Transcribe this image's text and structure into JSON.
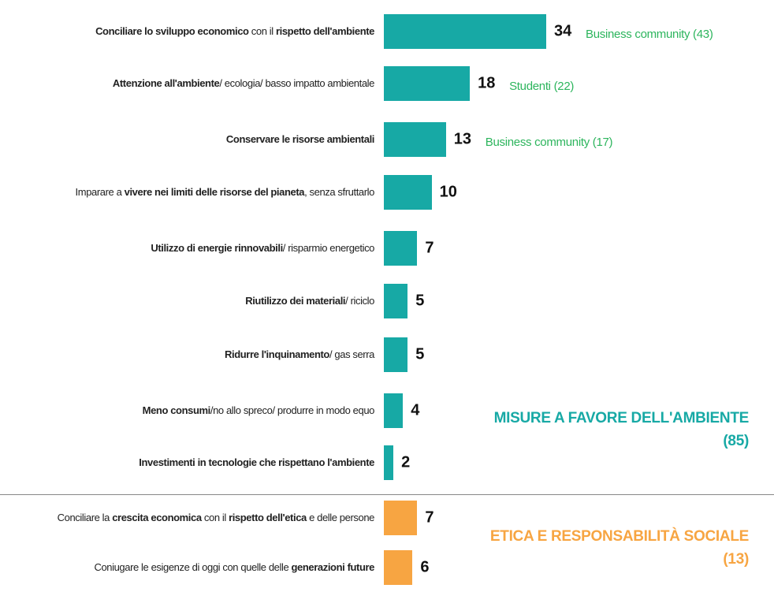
{
  "chart_data": {
    "type": "bar",
    "groups": [
      {
        "name": "MISURE A FAVORE DELL'AMBIENTE (85)",
        "color": "#17a9a5",
        "categories": [
          [
            {
              "text": "Conciliare lo sviluppo economico",
              "bold": true
            },
            {
              "text": " con il ",
              "bold": false
            },
            {
              "text": "rispetto dell'ambiente",
              "bold": true
            }
          ],
          [
            {
              "text": "Attenzione all'ambiente",
              "bold": true
            },
            {
              "text": "/ ecologia/ basso impatto ambientale",
              "bold": false
            }
          ],
          [
            {
              "text": "Conservare le risorse ambientali",
              "bold": true
            }
          ],
          [
            {
              "text": "Imparare a ",
              "bold": false
            },
            {
              "text": "vivere nei limiti delle risorse del pianeta",
              "bold": true
            },
            {
              "text": ", senza sfruttarlo",
              "bold": false
            }
          ],
          [
            {
              "text": "Utilizzo di energie rinnovabili",
              "bold": true
            },
            {
              "text": "/ risparmio energetico",
              "bold": false
            }
          ],
          [
            {
              "text": "Riutilizzo dei materiali",
              "bold": true
            },
            {
              "text": "/ riciclo",
              "bold": false
            }
          ],
          [
            {
              "text": "Ridurre l'inquinamento",
              "bold": true
            },
            {
              "text": "/ gas serra",
              "bold": false
            }
          ],
          [
            {
              "text": "Meno consumi",
              "bold": true
            },
            {
              "text": "/no allo spreco/ produrre in modo equo",
              "bold": false
            }
          ],
          [
            {
              "text": "Investimenti in tecnologie che rispettano l'ambiente",
              "bold": true
            }
          ]
        ],
        "values": [
          34,
          18,
          13,
          10,
          7,
          5,
          5,
          4,
          2
        ],
        "notes": [
          "Business community (43)",
          "Studenti (22)",
          "Business community (17)",
          null,
          null,
          null,
          null,
          null,
          null
        ]
      },
      {
        "name": "ETICA E RESPONSABILITÀ SOCIALE (13)",
        "color": "#f7a542",
        "categories": [
          [
            {
              "text": "Conciliare la ",
              "bold": false
            },
            {
              "text": "crescita economica",
              "bold": true
            },
            {
              "text": " con il ",
              "bold": false
            },
            {
              "text": "rispetto dell'etica",
              "bold": true
            },
            {
              "text": " e delle persone",
              "bold": false
            }
          ],
          [
            {
              "text": "Coniugare le esigenze di oggi con quelle delle ",
              "bold": false
            },
            {
              "text": "generazioni future",
              "bold": true
            }
          ]
        ],
        "values": [
          7,
          6
        ],
        "notes": [
          null,
          null
        ]
      }
    ]
  }
}
